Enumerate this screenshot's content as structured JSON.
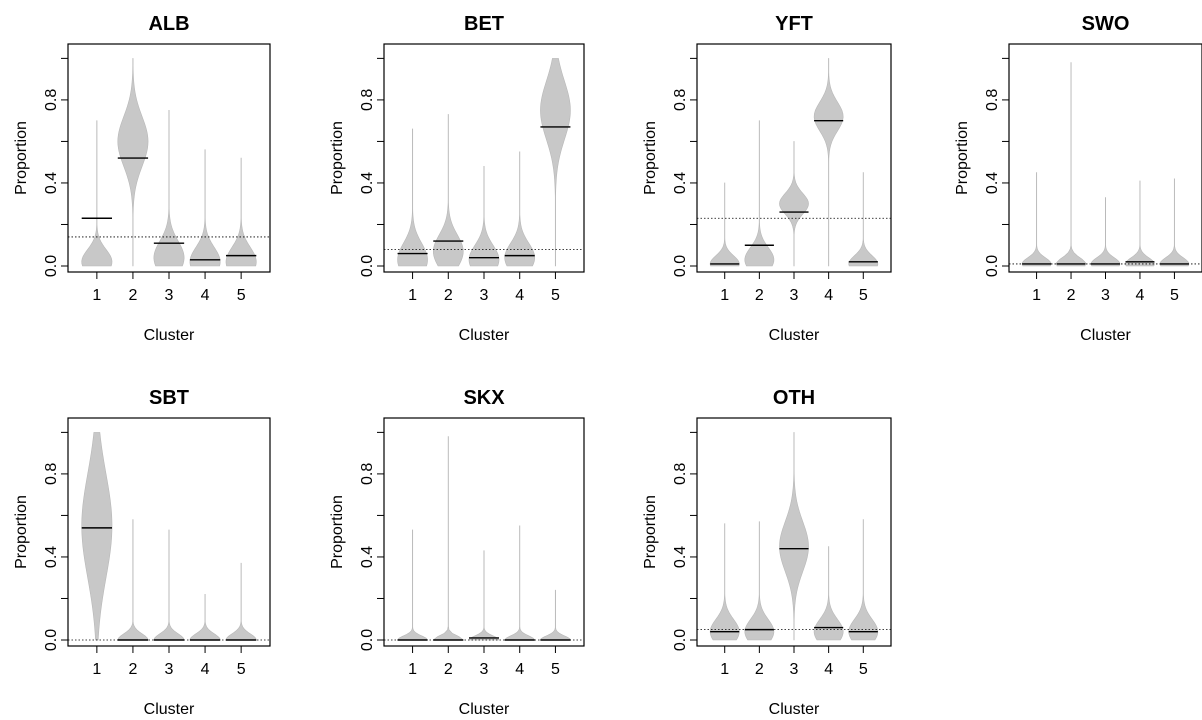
{
  "figure": {
    "xlabel": "Cluster",
    "ylabel": "Proportion",
    "y_tick_labels": [
      "0.0",
      "0.4",
      "0.8"
    ],
    "x_tick_labels": [
      "1",
      "2",
      "3",
      "4",
      "5"
    ],
    "violin_color": "#c8c8c8",
    "mean_line_color": "#000000",
    "reference_line_style": "dotted"
  },
  "chart_data": [
    {
      "type": "violin",
      "title": "ALB",
      "categories": [
        "1",
        "2",
        "3",
        "4",
        "5"
      ],
      "means": [
        0.23,
        0.52,
        0.11,
        0.03,
        0.05
      ],
      "max": [
        0.7,
        1.0,
        0.75,
        0.56,
        0.52
      ],
      "mode": [
        0.02,
        0.6,
        0.04,
        0.02,
        0.02
      ],
      "spread": [
        0.06,
        0.12,
        0.08,
        0.07,
        0.07
      ],
      "reference_line": 0.14,
      "ylim": [
        0,
        1.05
      ],
      "xlabel": "Cluster",
      "ylabel": "Proportion"
    },
    {
      "type": "violin",
      "title": "BET",
      "categories": [
        "1",
        "2",
        "3",
        "4",
        "5"
      ],
      "means": [
        0.06,
        0.12,
        0.04,
        0.05,
        0.67
      ],
      "max": [
        0.66,
        0.73,
        0.48,
        0.55,
        1.0
      ],
      "mode": [
        0.03,
        0.07,
        0.03,
        0.04,
        0.75
      ],
      "spread": [
        0.08,
        0.08,
        0.07,
        0.07,
        0.14
      ],
      "reference_line": 0.08,
      "ylim": [
        0,
        1.05
      ],
      "xlabel": "Cluster",
      "ylabel": "Proportion"
    },
    {
      "type": "violin",
      "title": "YFT",
      "categories": [
        "1",
        "2",
        "3",
        "4",
        "5"
      ],
      "means": [
        0.01,
        0.1,
        0.26,
        0.7,
        0.02
      ],
      "max": [
        0.4,
        0.7,
        0.6,
        1.0,
        0.45
      ],
      "mode": [
        0.01,
        0.03,
        0.3,
        0.72,
        0.01
      ],
      "spread": [
        0.04,
        0.06,
        0.05,
        0.07,
        0.04
      ],
      "reference_line": 0.23,
      "ylim": [
        0,
        1.05
      ],
      "xlabel": "Cluster",
      "ylabel": "Proportion"
    },
    {
      "type": "violin",
      "title": "SWO",
      "categories": [
        "1",
        "2",
        "3",
        "4",
        "5"
      ],
      "means": [
        0.01,
        0.01,
        0.01,
        0.02,
        0.01
      ],
      "max": [
        0.45,
        0.98,
        0.33,
        0.41,
        0.42
      ],
      "mode": [
        0.01,
        0.01,
        0.01,
        0.01,
        0.01
      ],
      "spread": [
        0.03,
        0.03,
        0.03,
        0.03,
        0.03
      ],
      "reference_line": 0.01,
      "ylim": [
        0,
        1.05
      ],
      "xlabel": "Cluster",
      "ylabel": "Proportion"
    },
    {
      "type": "violin",
      "title": "SBT",
      "categories": [
        "1",
        "2",
        "3",
        "4",
        "5"
      ],
      "means": [
        0.54,
        0.0,
        0.0,
        0.0,
        0.0
      ],
      "max": [
        1.0,
        0.58,
        0.53,
        0.22,
        0.37
      ],
      "mode": [
        0.55,
        0.0,
        0.0,
        0.0,
        0.0
      ],
      "spread": [
        0.25,
        0.03,
        0.03,
        0.03,
        0.03
      ],
      "reference_line": 0.0,
      "ylim": [
        0,
        1.05
      ],
      "xlabel": "Cluster",
      "ylabel": "Proportion"
    },
    {
      "type": "violin",
      "title": "SKX",
      "categories": [
        "1",
        "2",
        "3",
        "4",
        "5"
      ],
      "means": [
        0.0,
        0.0,
        0.01,
        0.0,
        0.0
      ],
      "max": [
        0.53,
        0.98,
        0.43,
        0.55,
        0.24
      ],
      "mode": [
        0.0,
        0.0,
        0.0,
        0.0,
        0.0
      ],
      "spread": [
        0.02,
        0.02,
        0.02,
        0.02,
        0.02
      ],
      "reference_line": 0.0,
      "ylim": [
        0,
        1.05
      ],
      "xlabel": "Cluster",
      "ylabel": "Proportion"
    },
    {
      "type": "violin",
      "title": "OTH",
      "categories": [
        "1",
        "2",
        "3",
        "4",
        "5"
      ],
      "means": [
        0.04,
        0.05,
        0.44,
        0.06,
        0.04
      ],
      "max": [
        0.56,
        0.57,
        1.0,
        0.45,
        0.58
      ],
      "mode": [
        0.04,
        0.04,
        0.45,
        0.04,
        0.04
      ],
      "spread": [
        0.06,
        0.06,
        0.12,
        0.06,
        0.06
      ],
      "reference_line": 0.05,
      "ylim": [
        0,
        1.05
      ],
      "xlabel": "Cluster",
      "ylabel": "Proportion"
    }
  ]
}
